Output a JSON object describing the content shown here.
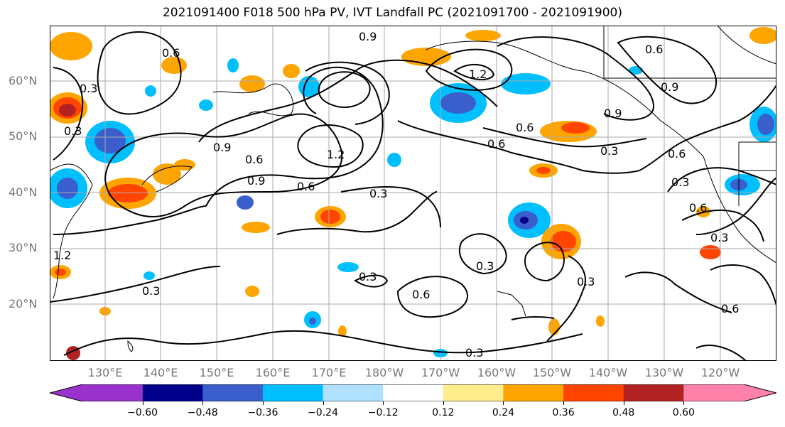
{
  "title": "2021091400 F018 500 hPa PV, IVT Landfall PC (2021091700 - 2021091900)",
  "lat_labels": [
    "60°N",
    "50°N",
    "40°N",
    "30°N",
    "20°N"
  ],
  "lon_labels": [
    "130°E",
    "140°E",
    "150°E",
    "160°E",
    "170°E",
    "180°W",
    "170°W",
    "160°W",
    "150°W",
    "140°W",
    "130°W",
    "120°W"
  ],
  "contour_labels": [
    "0.3",
    "0.6",
    "0.9",
    "1.2"
  ],
  "colorbar": {
    "ticks": [
      "−0.60",
      "−0.48",
      "−0.36",
      "−0.24",
      "−0.12",
      "0.12",
      "0.24",
      "0.36",
      "0.48",
      "0.60"
    ],
    "colors": [
      "#9932CC",
      "#00008B",
      "#3A5FCD",
      "#00BFFF",
      "#B0E2FF",
      "#FFFFFF",
      "#FFEC8B",
      "#FFA500",
      "#FF4500",
      "#B22222",
      "#FF82AB"
    ]
  }
}
